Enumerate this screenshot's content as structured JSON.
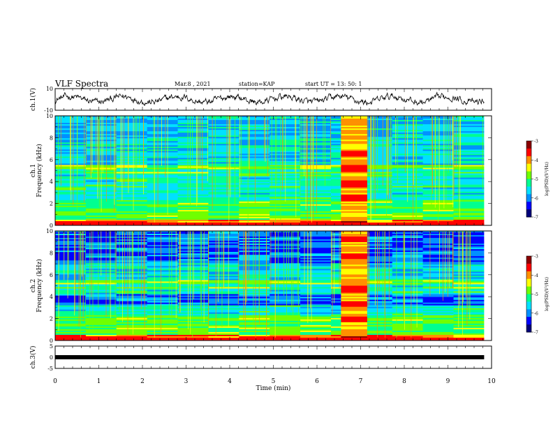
{
  "header": {
    "title": "VLF Spectra",
    "date": "Mar.8 , 2021",
    "station": "station=KAP",
    "start_ut": "start UT = 13: 50: 1"
  },
  "chart_data": [
    {
      "type": "line",
      "panel": "ch1-waveform",
      "ylabel": "ch.1(V)",
      "ylim": [
        -10,
        10
      ],
      "ytick_labels": [
        "10",
        "-10"
      ],
      "x_range_min": [
        0,
        9.83
      ],
      "note_values": "noisy trace fluctuating roughly between -5 and 5 V"
    },
    {
      "type": "heatmap",
      "panel": "ch1-spectrogram",
      "ylabel_top": "ch.1",
      "ylabel": "Frequency (kHz)",
      "ylim": [
        0,
        10
      ],
      "ytick_labels": [
        "0",
        "2",
        "4",
        "6",
        "8",
        "10"
      ],
      "colorbar_label": "log(PSD)(V²/Hz)",
      "colorbar_range": [
        -7,
        -3
      ],
      "colorbar_ticks": [
        "-3",
        "-4",
        "-5",
        "-6",
        "-7"
      ],
      "bright_band_min": [
        6.55,
        7.15
      ]
    },
    {
      "type": "heatmap",
      "panel": "ch2-spectrogram",
      "ylabel_top": "ch.2",
      "ylabel": "Frequency (kHz)",
      "ylim": [
        0,
        10
      ],
      "ytick_labels": [
        "0",
        "2",
        "4",
        "6",
        "8",
        "10"
      ],
      "colorbar_label": "log(PSD)(V²/Hz)",
      "colorbar_range": [
        -7,
        -3
      ],
      "colorbar_ticks": [
        "-3",
        "-4",
        "-5",
        "-6",
        "-7"
      ],
      "bright_band_min": [
        6.55,
        7.15
      ]
    },
    {
      "type": "line",
      "panel": "ch3-waveform",
      "ylabel": "ch.3(V)",
      "ylim": [
        -5,
        5
      ],
      "ytick_labels": [
        "5",
        "0",
        "-5"
      ],
      "constant_value": 0
    }
  ],
  "x_axis": {
    "label": "Time (min)",
    "range": [
      0,
      10
    ],
    "tick_labels": [
      "0",
      "1",
      "2",
      "3",
      "4",
      "5",
      "6",
      "7",
      "8",
      "9",
      "10"
    ]
  },
  "colors": {
    "colormap": [
      "#00007a",
      "#0000ff",
      "#0090ff",
      "#00e0ff",
      "#00ff90",
      "#70ff00",
      "#ffff00",
      "#ff9000",
      "#ff0000",
      "#8a0000"
    ],
    "line": "#000000"
  }
}
